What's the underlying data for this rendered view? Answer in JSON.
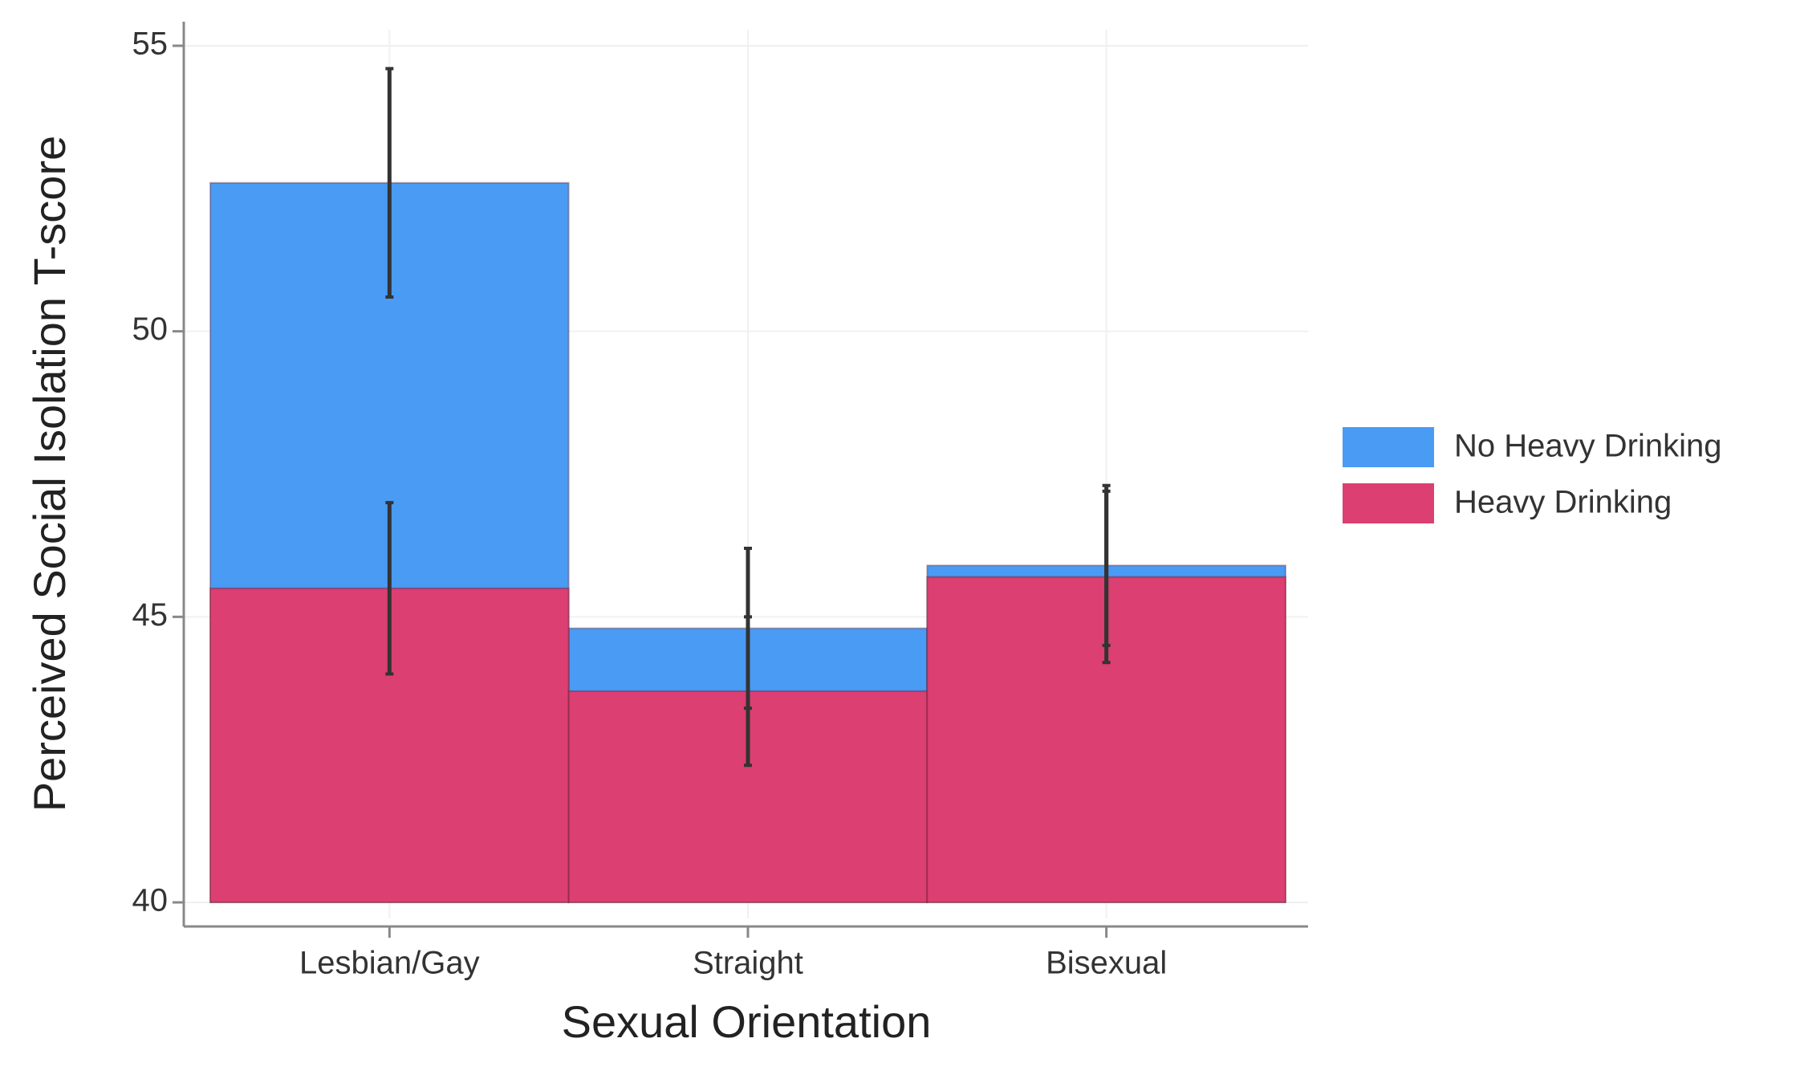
{
  "chart_data": {
    "type": "bar",
    "mode": "overlap",
    "x_label": "Sexual Orientation",
    "y_label": "Perceived Social Isolation T-score",
    "categories": [
      "Lesbian/Gay",
      "Straight",
      "Bisexual"
    ],
    "series": [
      {
        "name": "No Heavy Drinking",
        "color": "#4a9bf4",
        "values": [
          52.6,
          44.8,
          45.9
        ],
        "errors": [
          2.0,
          1.4,
          1.4
        ]
      },
      {
        "name": "Heavy Drinking",
        "color": "#dc3f72",
        "values": [
          45.5,
          43.7,
          45.7
        ],
        "errors": [
          1.5,
          1.3,
          1.5
        ]
      }
    ],
    "ylim": [
      40,
      55
    ],
    "yticks": [
      40,
      45,
      50,
      55
    ],
    "grid": true,
    "legend": "right"
  }
}
